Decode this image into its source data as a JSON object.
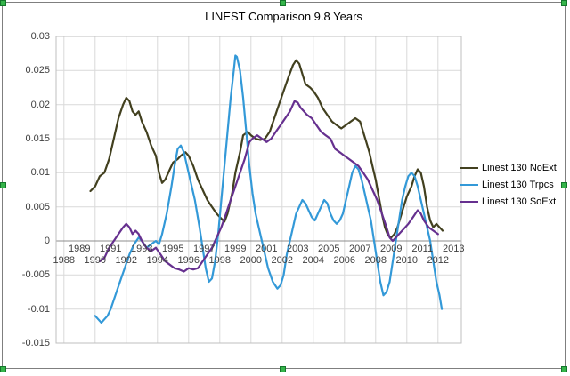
{
  "selection": {
    "handle_color": "#35b44a"
  },
  "chart_data": {
    "type": "line",
    "title": "LINEST Comparison 9.8 Years",
    "xlabel": "",
    "ylabel": "",
    "xlim": [
      1988,
      2013
    ],
    "ylim": [
      -0.015,
      0.03
    ],
    "grid": true,
    "legend_position": "right",
    "x_ticks": [
      1988,
      1989,
      1990,
      1991,
      1992,
      1993,
      1994,
      1995,
      1996,
      1997,
      1998,
      1999,
      2000,
      2001,
      2002,
      2003,
      2004,
      2005,
      2006,
      2007,
      2008,
      2009,
      2010,
      2011,
      2012,
      2013
    ],
    "x_grid_years": [
      1988,
      1990,
      1992,
      1994,
      1996,
      1998,
      2000,
      2002,
      2004,
      2006,
      2008,
      2010,
      2012
    ],
    "y_ticks": [
      {
        "v": 0.03,
        "label": "0.03"
      },
      {
        "v": 0.025,
        "label": "0.025"
      },
      {
        "v": 0.02,
        "label": "0.02"
      },
      {
        "v": 0.015,
        "label": "0.015"
      },
      {
        "v": 0.01,
        "label": "0.01"
      },
      {
        "v": 0.005,
        "label": "0.005"
      },
      {
        "v": 0,
        "label": "0"
      },
      {
        "v": -0.005,
        "label": "-0.005"
      },
      {
        "v": -0.01,
        "label": "-0.01"
      },
      {
        "v": -0.015,
        "label": "-0.015"
      }
    ],
    "series": [
      {
        "name": "Linest 130 NoExt",
        "color": "#42401f",
        "points": [
          [
            1989.7,
            0.0073
          ],
          [
            1990,
            0.008
          ],
          [
            1990.3,
            0.0095
          ],
          [
            1990.6,
            0.01
          ],
          [
            1990.9,
            0.012
          ],
          [
            1991.2,
            0.015
          ],
          [
            1991.5,
            0.018
          ],
          [
            1991.8,
            0.02
          ],
          [
            1992,
            0.021
          ],
          [
            1992.2,
            0.0205
          ],
          [
            1992.4,
            0.019
          ],
          [
            1992.6,
            0.0185
          ],
          [
            1992.8,
            0.019
          ],
          [
            1993,
            0.0175
          ],
          [
            1993.3,
            0.016
          ],
          [
            1993.6,
            0.014
          ],
          [
            1993.9,
            0.0125
          ],
          [
            1994.1,
            0.01
          ],
          [
            1994.3,
            0.0085
          ],
          [
            1994.5,
            0.009
          ],
          [
            1994.8,
            0.0105
          ],
          [
            1995,
            0.0115
          ],
          [
            1995.3,
            0.012
          ],
          [
            1995.5,
            0.0125
          ],
          [
            1995.8,
            0.013
          ],
          [
            1996,
            0.0125
          ],
          [
            1996.3,
            0.011
          ],
          [
            1996.6,
            0.009
          ],
          [
            1996.9,
            0.0075
          ],
          [
            1997.2,
            0.006
          ],
          [
            1997.5,
            0.005
          ],
          [
            1997.8,
            0.004
          ],
          [
            1998,
            0.0035
          ],
          [
            1998.3,
            0.0028
          ],
          [
            1998.5,
            0.004
          ],
          [
            1998.8,
            0.007
          ],
          [
            1999,
            0.01
          ],
          [
            1999.3,
            0.013
          ],
          [
            1999.5,
            0.0155
          ],
          [
            1999.8,
            0.016
          ],
          [
            2000,
            0.0155
          ],
          [
            2000.3,
            0.015
          ],
          [
            2000.6,
            0.0148
          ],
          [
            2000.9,
            0.015
          ],
          [
            2001.2,
            0.016
          ],
          [
            2001.5,
            0.018
          ],
          [
            2001.8,
            0.02
          ],
          [
            2002.1,
            0.022
          ],
          [
            2002.4,
            0.024
          ],
          [
            2002.7,
            0.0258
          ],
          [
            2002.9,
            0.0265
          ],
          [
            2003.1,
            0.026
          ],
          [
            2003.3,
            0.0245
          ],
          [
            2003.5,
            0.023
          ],
          [
            2003.8,
            0.0225
          ],
          [
            2004,
            0.022
          ],
          [
            2004.3,
            0.021
          ],
          [
            2004.6,
            0.0195
          ],
          [
            2004.9,
            0.0185
          ],
          [
            2005.2,
            0.0175
          ],
          [
            2005.5,
            0.017
          ],
          [
            2005.8,
            0.0165
          ],
          [
            2006.1,
            0.017
          ],
          [
            2006.4,
            0.0175
          ],
          [
            2006.7,
            0.018
          ],
          [
            2007,
            0.0175
          ],
          [
            2007.2,
            0.016
          ],
          [
            2007.4,
            0.0145
          ],
          [
            2007.6,
            0.013
          ],
          [
            2007.8,
            0.011
          ],
          [
            2008,
            0.009
          ],
          [
            2008.2,
            0.0065
          ],
          [
            2008.4,
            0.004
          ],
          [
            2008.6,
            0.002
          ],
          [
            2008.8,
            0.0008
          ],
          [
            2009,
            0.0005
          ],
          [
            2009.2,
            0.001
          ],
          [
            2009.4,
            0.002
          ],
          [
            2009.6,
            0.0035
          ],
          [
            2009.8,
            0.005
          ],
          [
            2010,
            0.0065
          ],
          [
            2010.3,
            0.008
          ],
          [
            2010.5,
            0.0095
          ],
          [
            2010.7,
            0.0105
          ],
          [
            2010.9,
            0.01
          ],
          [
            2011.1,
            0.008
          ],
          [
            2011.3,
            0.005
          ],
          [
            2011.5,
            0.003
          ],
          [
            2011.7,
            0.002
          ],
          [
            2011.9,
            0.0025
          ],
          [
            2012.1,
            0.002
          ],
          [
            2012.3,
            0.0015
          ]
        ]
      },
      {
        "name": "Linest 130 Trpcs",
        "color": "#3399d8",
        "points": [
          [
            1990,
            -0.011
          ],
          [
            1990.2,
            -0.0115
          ],
          [
            1990.4,
            -0.012
          ],
          [
            1990.6,
            -0.0115
          ],
          [
            1990.8,
            -0.011
          ],
          [
            1991,
            -0.01
          ],
          [
            1991.3,
            -0.008
          ],
          [
            1991.6,
            -0.006
          ],
          [
            1991.9,
            -0.004
          ],
          [
            1992.2,
            -0.002
          ],
          [
            1992.5,
            -0.0005
          ],
          [
            1992.8,
            0.0005
          ],
          [
            1993,
            0
          ],
          [
            1993.3,
            -0.001
          ],
          [
            1993.6,
            -0.0005
          ],
          [
            1993.9,
            0
          ],
          [
            1994.1,
            -0.0005
          ],
          [
            1994.3,
            0.001
          ],
          [
            1994.6,
            0.004
          ],
          [
            1994.9,
            0.008
          ],
          [
            1995.1,
            0.011
          ],
          [
            1995.3,
            0.0135
          ],
          [
            1995.5,
            0.014
          ],
          [
            1995.7,
            0.013
          ],
          [
            1995.9,
            0.011
          ],
          [
            1996.1,
            0.009
          ],
          [
            1996.4,
            0.006
          ],
          [
            1996.7,
            0.002
          ],
          [
            1996.9,
            -0.001
          ],
          [
            1997.1,
            -0.004
          ],
          [
            1997.3,
            -0.006
          ],
          [
            1997.5,
            -0.0055
          ],
          [
            1997.7,
            -0.003
          ],
          [
            1997.9,
            0.001
          ],
          [
            1998.1,
            0.006
          ],
          [
            1998.3,
            0.011
          ],
          [
            1998.5,
            0.016
          ],
          [
            1998.7,
            0.021
          ],
          [
            1998.9,
            0.025
          ],
          [
            1999,
            0.0272
          ],
          [
            1999.1,
            0.027
          ],
          [
            1999.3,
            0.025
          ],
          [
            1999.5,
            0.021
          ],
          [
            1999.7,
            0.016
          ],
          [
            1999.9,
            0.011
          ],
          [
            2000.1,
            0.007
          ],
          [
            2000.3,
            0.004
          ],
          [
            2000.5,
            0.002
          ],
          [
            2000.7,
            0
          ],
          [
            2000.9,
            -0.002
          ],
          [
            2001.1,
            -0.004
          ],
          [
            2001.4,
            -0.006
          ],
          [
            2001.7,
            -0.007
          ],
          [
            2001.9,
            -0.0065
          ],
          [
            2002.1,
            -0.005
          ],
          [
            2002.3,
            -0.002
          ],
          [
            2002.5,
            0
          ],
          [
            2002.7,
            0.002
          ],
          [
            2002.9,
            0.004
          ],
          [
            2003.1,
            0.005
          ],
          [
            2003.3,
            0.006
          ],
          [
            2003.5,
            0.0055
          ],
          [
            2003.7,
            0.0045
          ],
          [
            2003.9,
            0.0035
          ],
          [
            2004.1,
            0.003
          ],
          [
            2004.3,
            0.004
          ],
          [
            2004.5,
            0.005
          ],
          [
            2004.7,
            0.006
          ],
          [
            2004.9,
            0.0055
          ],
          [
            2005.1,
            0.004
          ],
          [
            2005.3,
            0.003
          ],
          [
            2005.5,
            0.0025
          ],
          [
            2005.7,
            0.003
          ],
          [
            2005.9,
            0.004
          ],
          [
            2006.1,
            0.006
          ],
          [
            2006.3,
            0.008
          ],
          [
            2006.5,
            0.01
          ],
          [
            2006.7,
            0.011
          ],
          [
            2006.9,
            0.0105
          ],
          [
            2007.1,
            0.009
          ],
          [
            2007.3,
            0.007
          ],
          [
            2007.5,
            0.005
          ],
          [
            2007.7,
            0.003
          ],
          [
            2007.9,
            0
          ],
          [
            2008.1,
            -0.003
          ],
          [
            2008.3,
            -0.006
          ],
          [
            2008.5,
            -0.008
          ],
          [
            2008.7,
            -0.0075
          ],
          [
            2008.9,
            -0.006
          ],
          [
            2009.1,
            -0.003
          ],
          [
            2009.3,
            0
          ],
          [
            2009.5,
            0.003
          ],
          [
            2009.7,
            0.006
          ],
          [
            2009.9,
            0.008
          ],
          [
            2010.1,
            0.0095
          ],
          [
            2010.3,
            0.01
          ],
          [
            2010.5,
            0.0095
          ],
          [
            2010.7,
            0.008
          ],
          [
            2010.9,
            0.006
          ],
          [
            2011.1,
            0.004
          ],
          [
            2011.3,
            0.002
          ],
          [
            2011.5,
            0
          ],
          [
            2011.7,
            -0.003
          ],
          [
            2011.9,
            -0.006
          ],
          [
            2012.1,
            -0.008
          ],
          [
            2012.25,
            -0.01
          ]
        ]
      },
      {
        "name": "Linest 130 SoExt",
        "color": "#66308f",
        "points": [
          [
            1990.3,
            -0.003
          ],
          [
            1990.6,
            -0.0025
          ],
          [
            1990.9,
            -0.001
          ],
          [
            1991.2,
            0
          ],
          [
            1991.5,
            0.001
          ],
          [
            1991.8,
            0.002
          ],
          [
            1992,
            0.0025
          ],
          [
            1992.2,
            0.002
          ],
          [
            1992.4,
            0.001
          ],
          [
            1992.6,
            0.0015
          ],
          [
            1992.8,
            0.001
          ],
          [
            1993,
            0
          ],
          [
            1993.3,
            -0.001
          ],
          [
            1993.6,
            -0.0015
          ],
          [
            1993.9,
            -0.001
          ],
          [
            1994.2,
            -0.002
          ],
          [
            1994.5,
            -0.003
          ],
          [
            1994.8,
            -0.0035
          ],
          [
            1995.1,
            -0.004
          ],
          [
            1995.4,
            -0.0042
          ],
          [
            1995.7,
            -0.0045
          ],
          [
            1996,
            -0.004
          ],
          [
            1996.3,
            -0.0042
          ],
          [
            1996.6,
            -0.004
          ],
          [
            1996.9,
            -0.003
          ],
          [
            1997.2,
            -0.002
          ],
          [
            1997.5,
            -0.001
          ],
          [
            1997.8,
            0.0005
          ],
          [
            1998.1,
            0.002
          ],
          [
            1998.4,
            0.004
          ],
          [
            1998.7,
            0.006
          ],
          [
            1999,
            0.008
          ],
          [
            1999.3,
            0.01
          ],
          [
            1999.6,
            0.012
          ],
          [
            1999.9,
            0.0145
          ],
          [
            2000.1,
            0.015
          ],
          [
            2000.4,
            0.0155
          ],
          [
            2000.7,
            0.015
          ],
          [
            2001,
            0.0145
          ],
          [
            2001.3,
            0.015
          ],
          [
            2001.6,
            0.016
          ],
          [
            2001.9,
            0.017
          ],
          [
            2002.2,
            0.018
          ],
          [
            2002.5,
            0.019
          ],
          [
            2002.8,
            0.0205
          ],
          [
            2003,
            0.0203
          ],
          [
            2003.2,
            0.0195
          ],
          [
            2003.4,
            0.019
          ],
          [
            2003.6,
            0.0185
          ],
          [
            2003.9,
            0.018
          ],
          [
            2004.2,
            0.017
          ],
          [
            2004.5,
            0.016
          ],
          [
            2004.8,
            0.0155
          ],
          [
            2005.1,
            0.015
          ],
          [
            2005.4,
            0.0135
          ],
          [
            2005.7,
            0.013
          ],
          [
            2006,
            0.0125
          ],
          [
            2006.3,
            0.012
          ],
          [
            2006.6,
            0.0115
          ],
          [
            2006.9,
            0.011
          ],
          [
            2007.2,
            0.01
          ],
          [
            2007.5,
            0.009
          ],
          [
            2007.8,
            0.0075
          ],
          [
            2008.1,
            0.006
          ],
          [
            2008.4,
            0.004
          ],
          [
            2008.7,
            0.002
          ],
          [
            2008.9,
            0.0005
          ],
          [
            2009.1,
            0
          ],
          [
            2009.3,
            0.0005
          ],
          [
            2009.5,
            0.001
          ],
          [
            2009.7,
            0.0015
          ],
          [
            2009.9,
            0.002
          ],
          [
            2010.1,
            0.0025
          ],
          [
            2010.4,
            0.0035
          ],
          [
            2010.7,
            0.0045
          ],
          [
            2010.9,
            0.004
          ],
          [
            2011.1,
            0.003
          ],
          [
            2011.4,
            0.002
          ],
          [
            2011.7,
            0.0015
          ],
          [
            2012,
            0.001
          ]
        ]
      }
    ]
  }
}
